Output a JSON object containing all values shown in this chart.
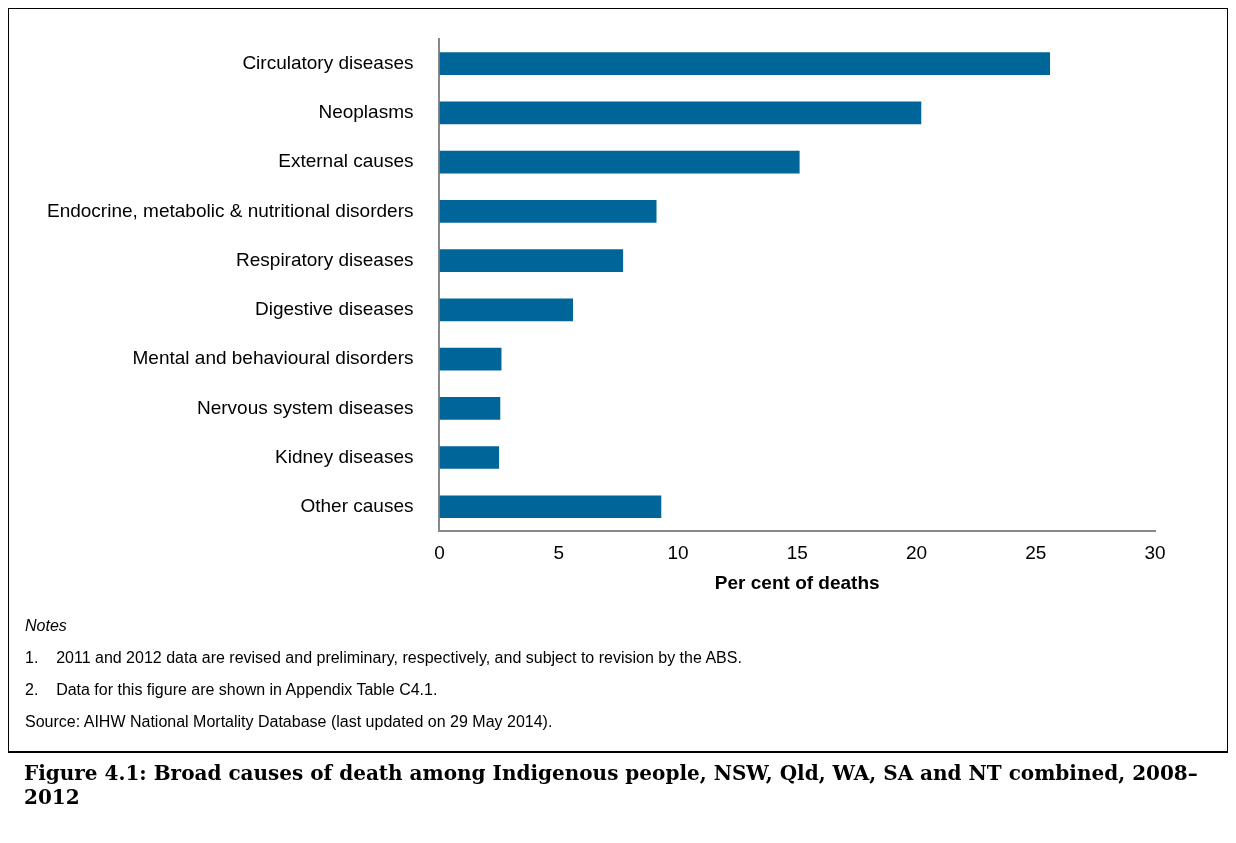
{
  "chart_data": {
    "type": "bar",
    "orientation": "horizontal",
    "title": "Figure 4.1: Broad causes of death among Indigenous people, NSW, Qld, WA, SA and NT combined, 2008–2012",
    "xlabel": "Per cent of deaths",
    "categories": [
      "Circulatory diseases",
      "Neoplasms",
      "External causes",
      "Endocrine, metabolic & nutritional disorders",
      "Respiratory diseases",
      "Digestive diseases",
      "Mental and behavioural disorders",
      "Nervous system diseases",
      "Kidney diseases",
      "Other causes"
    ],
    "values": [
      25.6,
      20.2,
      15.1,
      9.1,
      7.7,
      5.6,
      2.6,
      2.55,
      2.5,
      9.3
    ],
    "color": "#006699",
    "xlim": [
      0,
      30
    ],
    "xticks": [
      0,
      5,
      10,
      15,
      20,
      25,
      30
    ],
    "grid": false,
    "legend": false,
    "annotations": [
      "Notes",
      "1.    2011 and 2012 data are revised and preliminary, respectively, and subject to revision by the ABS.",
      "2.    Data for this figure are shown in Appendix Table C4.1.",
      "Source: AIHW National Mortality Database (last updated on 29 May 2014)."
    ]
  }
}
